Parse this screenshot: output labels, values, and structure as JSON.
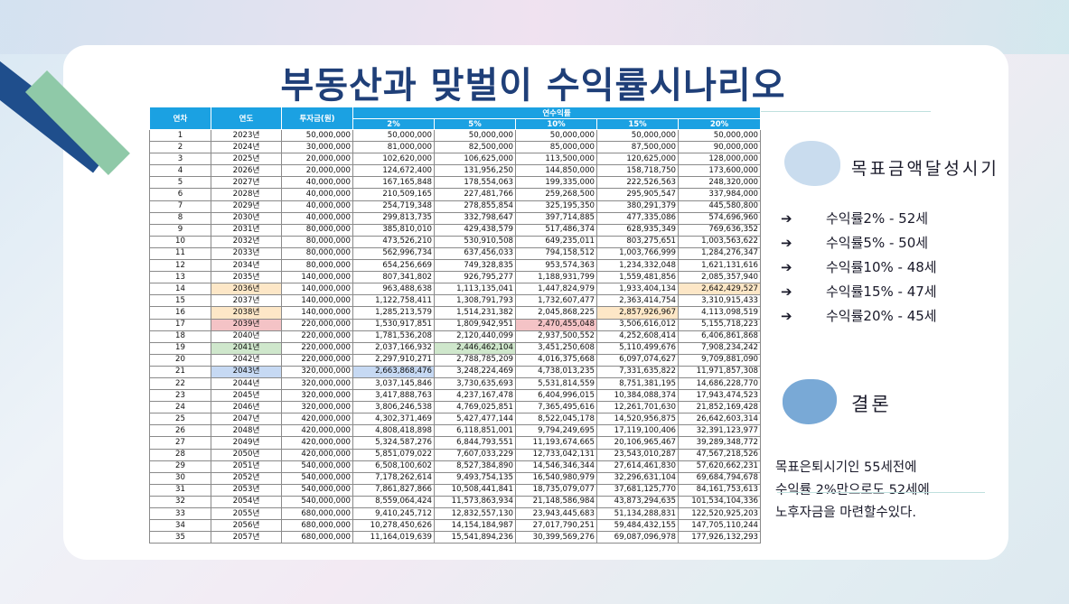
{
  "title": "부동산과 맞벌이 수익률시나리오",
  "table": {
    "headers": {
      "year_no": "연차",
      "year": "연도",
      "investment": "투자금(원)",
      "annual_return": "연수익률",
      "rates": [
        "2%",
        "5%",
        "10%",
        "15%",
        "20%"
      ]
    },
    "rows": [
      [
        "1",
        "2023년",
        "50,000,000",
        "50,000,000",
        "50,000,000",
        "50,000,000",
        "50,000,000",
        "50,000,000"
      ],
      [
        "2",
        "2024년",
        "30,000,000",
        "81,000,000",
        "82,500,000",
        "85,000,000",
        "87,500,000",
        "90,000,000"
      ],
      [
        "3",
        "2025년",
        "20,000,000",
        "102,620,000",
        "106,625,000",
        "113,500,000",
        "120,625,000",
        "128,000,000"
      ],
      [
        "4",
        "2026년",
        "20,000,000",
        "124,672,400",
        "131,956,250",
        "144,850,000",
        "158,718,750",
        "173,600,000"
      ],
      [
        "5",
        "2027년",
        "40,000,000",
        "167,165,848",
        "178,554,063",
        "199,335,000",
        "222,526,563",
        "248,320,000"
      ],
      [
        "6",
        "2028년",
        "40,000,000",
        "210,509,165",
        "227,481,766",
        "259,268,500",
        "295,905,547",
        "337,984,000"
      ],
      [
        "7",
        "2029년",
        "40,000,000",
        "254,719,348",
        "278,855,854",
        "325,195,350",
        "380,291,379",
        "445,580,800"
      ],
      [
        "8",
        "2030년",
        "40,000,000",
        "299,813,735",
        "332,798,647",
        "397,714,885",
        "477,335,086",
        "574,696,960"
      ],
      [
        "9",
        "2031년",
        "80,000,000",
        "385,810,010",
        "429,438,579",
        "517,486,374",
        "628,935,349",
        "769,636,352"
      ],
      [
        "10",
        "2032년",
        "80,000,000",
        "473,526,210",
        "530,910,508",
        "649,235,011",
        "803,275,651",
        "1,003,563,622"
      ],
      [
        "11",
        "2033년",
        "80,000,000",
        "562,996,734",
        "637,456,033",
        "794,158,512",
        "1,003,766,999",
        "1,284,276,347"
      ],
      [
        "12",
        "2034년",
        "80,000,000",
        "654,256,669",
        "749,328,835",
        "953,574,363",
        "1,234,332,048",
        "1,621,131,616"
      ],
      [
        "13",
        "2035년",
        "140,000,000",
        "807,341,802",
        "926,795,277",
        "1,188,931,799",
        "1,559,481,856",
        "2,085,357,940"
      ],
      [
        "14",
        "2036년",
        "140,000,000",
        "963,488,638",
        "1,113,135,041",
        "1,447,824,979",
        "1,933,404,134",
        "2,642,429,527"
      ],
      [
        "15",
        "2037년",
        "140,000,000",
        "1,122,758,411",
        "1,308,791,793",
        "1,732,607,477",
        "2,363,414,754",
        "3,310,915,433"
      ],
      [
        "16",
        "2038년",
        "140,000,000",
        "1,285,213,579",
        "1,514,231,382",
        "2,045,868,225",
        "2,857,926,967",
        "4,113,098,519"
      ],
      [
        "17",
        "2039년",
        "220,000,000",
        "1,530,917,851",
        "1,809,942,951",
        "2,470,455,048",
        "3,506,616,012",
        "5,155,718,223"
      ],
      [
        "18",
        "2040년",
        "220,000,000",
        "1,781,536,208",
        "2,120,440,099",
        "2,937,500,552",
        "4,252,608,414",
        "6,406,861,868"
      ],
      [
        "19",
        "2041년",
        "220,000,000",
        "2,037,166,932",
        "2,446,462,104",
        "3,451,250,608",
        "5,110,499,676",
        "7,908,234,242"
      ],
      [
        "20",
        "2042년",
        "220,000,000",
        "2,297,910,271",
        "2,788,785,209",
        "4,016,375,668",
        "6,097,074,627",
        "9,709,881,090"
      ],
      [
        "21",
        "2043년",
        "320,000,000",
        "2,663,868,476",
        "3,248,224,469",
        "4,738,013,235",
        "7,331,635,822",
        "11,971,857,308"
      ],
      [
        "22",
        "2044년",
        "320,000,000",
        "3,037,145,846",
        "3,730,635,693",
        "5,531,814,559",
        "8,751,381,195",
        "14,686,228,770"
      ],
      [
        "23",
        "2045년",
        "320,000,000",
        "3,417,888,763",
        "4,237,167,478",
        "6,404,996,015",
        "10,384,088,374",
        "17,943,474,523"
      ],
      [
        "24",
        "2046년",
        "320,000,000",
        "3,806,246,538",
        "4,769,025,851",
        "7,365,495,616",
        "12,261,701,630",
        "21,852,169,428"
      ],
      [
        "25",
        "2047년",
        "420,000,000",
        "4,302,371,469",
        "5,427,477,144",
        "8,522,045,178",
        "14,520,956,875",
        "26,642,603,314"
      ],
      [
        "26",
        "2048년",
        "420,000,000",
        "4,808,418,898",
        "6,118,851,001",
        "9,794,249,695",
        "17,119,100,406",
        "32,391,123,977"
      ],
      [
        "27",
        "2049년",
        "420,000,000",
        "5,324,587,276",
        "6,844,793,551",
        "11,193,674,665",
        "20,106,965,467",
        "39,289,348,772"
      ],
      [
        "28",
        "2050년",
        "420,000,000",
        "5,851,079,022",
        "7,607,033,229",
        "12,733,042,131",
        "23,543,010,287",
        "47,567,218,526"
      ],
      [
        "29",
        "2051년",
        "540,000,000",
        "6,508,100,602",
        "8,527,384,890",
        "14,546,346,344",
        "27,614,461,830",
        "57,620,662,231"
      ],
      [
        "30",
        "2052년",
        "540,000,000",
        "7,178,262,614",
        "9,493,754,135",
        "16,540,980,979",
        "32,296,631,104",
        "69,684,794,678"
      ],
      [
        "31",
        "2053년",
        "540,000,000",
        "7,861,827,866",
        "10,508,441,841",
        "18,735,079,077",
        "37,681,125,770",
        "84,161,753,613"
      ],
      [
        "32",
        "2054년",
        "540,000,000",
        "8,559,064,424",
        "11,573,863,934",
        "21,148,586,984",
        "43,873,294,635",
        "101,534,104,336"
      ],
      [
        "33",
        "2055년",
        "680,000,000",
        "9,410,245,712",
        "12,832,557,130",
        "23,943,445,683",
        "51,134,288,831",
        "122,520,925,203"
      ],
      [
        "34",
        "2056년",
        "680,000,000",
        "10,278,450,626",
        "14,154,184,987",
        "27,017,790,251",
        "59,484,432,155",
        "147,705,110,244"
      ],
      [
        "35",
        "2057년",
        "680,000,000",
        "11,164,019,639",
        "15,541,894,236",
        "30,399,569,276",
        "69,087,096,978",
        "177,926,132,293"
      ]
    ],
    "highlights": {
      "13": {
        "year": "orange",
        "c7": "orange"
      },
      "15": {
        "year": "orange",
        "c6": "orange"
      },
      "16": {
        "year": "red",
        "c5": "red"
      },
      "18": {
        "year": "green",
        "c4": "green"
      },
      "20": {
        "year": "blue",
        "c3": "blue"
      }
    }
  },
  "goal_section": {
    "title": "목표금액달성시기",
    "arrow": "➔",
    "items": [
      "수익률2% - 52세",
      "수익률5% - 50세",
      "수익률10% - 48세",
      "수익률15% - 47세",
      "수익률20% - 45세"
    ]
  },
  "conclusion_section": {
    "title": "결론",
    "lines": [
      "목표은퇴시기인 55세전에",
      "수익률 2%만으로도 52세에",
      "노후자금을 마련할수있다."
    ]
  }
}
